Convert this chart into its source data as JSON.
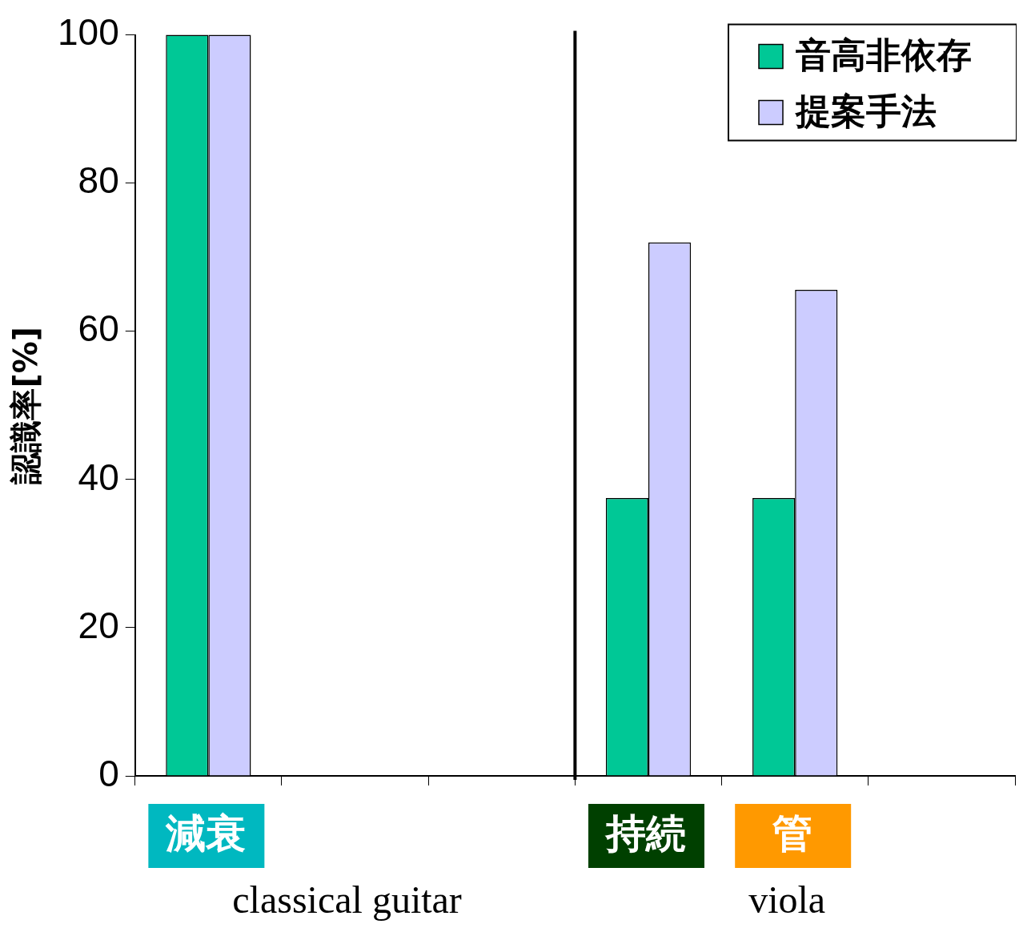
{
  "chart_data": {
    "type": "bar",
    "ylabel": "認識率[%]",
    "categories": [
      "減衰",
      null,
      null,
      "持続",
      "管",
      null
    ],
    "series": [
      {
        "name": "音高非依存",
        "color": "#00c896",
        "values": [
          100,
          null,
          null,
          37.5,
          37.5,
          null
        ]
      },
      {
        "name": "提案手法",
        "color": "#ccccff",
        "values": [
          100,
          null,
          null,
          72,
          65.6,
          null
        ]
      }
    ],
    "ylim": [
      0,
      100
    ],
    "yticks": [
      0,
      20,
      40,
      60,
      80,
      100
    ],
    "grid": false,
    "legend": "top right",
    "annotations": [
      "classical guitar",
      "viola"
    ]
  }
}
